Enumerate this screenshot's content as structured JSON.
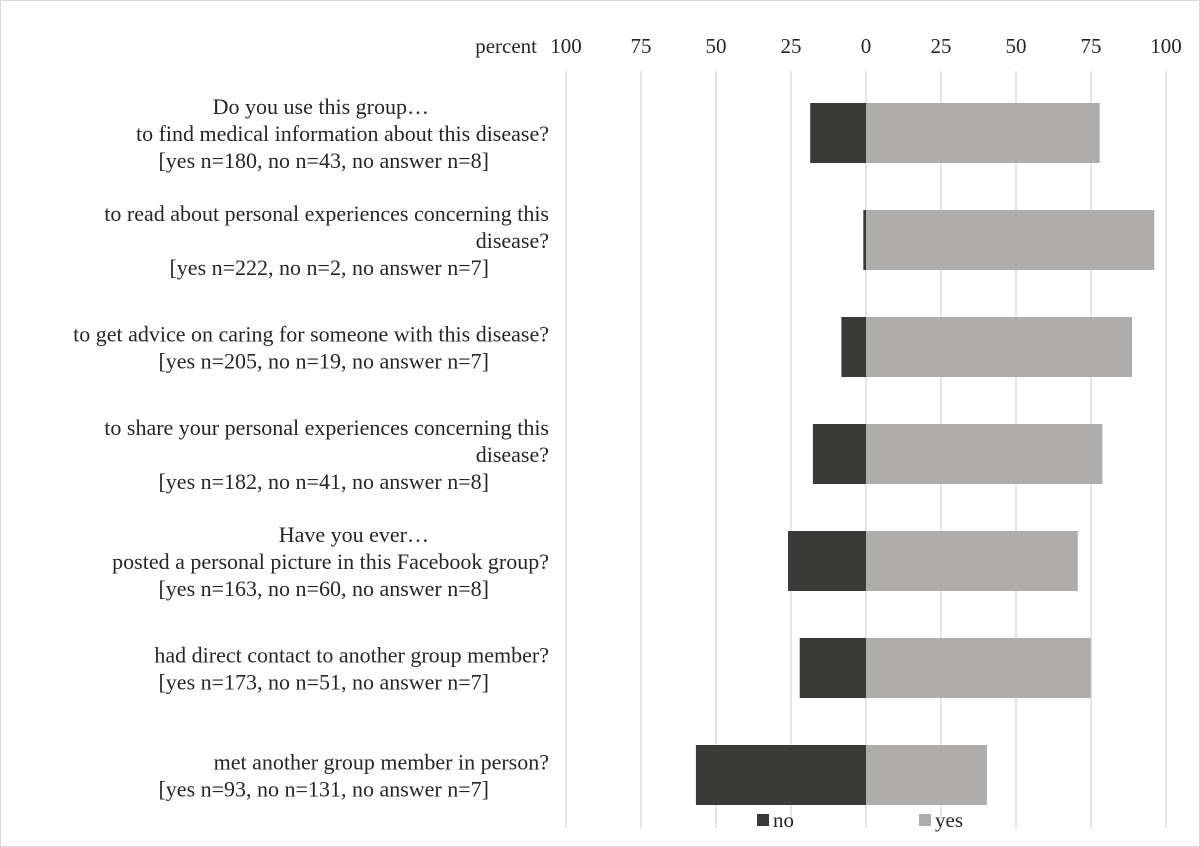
{
  "chart_data": {
    "type": "bar",
    "orientation": "horizontal",
    "stacking": "diverging",
    "xlabel": "percent",
    "xlim": [
      -100,
      100
    ],
    "ticks": [
      -100,
      -75,
      -50,
      -25,
      0,
      25,
      50,
      75,
      100
    ],
    "tick_labels": [
      "100",
      "75",
      "50",
      "25",
      "0",
      "25",
      "50",
      "75",
      "100"
    ],
    "grid": true,
    "legend_position": "bottom",
    "categories": [
      {
        "lines": [
          "Do you use this group…",
          "to find medical information about this disease?",
          "[yes n=180, no n=43, no answer n=8]"
        ]
      },
      {
        "lines": [
          "to read about personal experiences concerning this",
          "disease?",
          "[yes n=222, no n=2, no answer n=7]"
        ]
      },
      {
        "lines": [
          "to get advice on caring for someone with this disease?",
          "[yes n=205, no n=19, no answer n=7]"
        ]
      },
      {
        "lines": [
          "to share your personal experiences concerning this",
          "disease?",
          "[yes n=182, no n=41, no answer n=8]"
        ]
      },
      {
        "lines": [
          "Have you ever…",
          "posted a personal picture in this Facebook group?",
          "[yes n=163, no n=60, no answer n=8]"
        ]
      },
      {
        "lines": [
          "had direct contact to another group member?",
          "[yes n=173, no n=51, no answer n=7]"
        ]
      },
      {
        "lines": [
          "met another group member in person?",
          "[yes n=93, no n=131, no answer n=7]"
        ]
      }
    ],
    "series": [
      {
        "name": "no",
        "color": "#3a3a38",
        "values": [
          18.6,
          0.9,
          8.2,
          17.7,
          26.0,
          22.1,
          56.7
        ]
      },
      {
        "name": "yes",
        "color": "#afadac",
        "values": [
          77.9,
          96.1,
          88.7,
          78.8,
          70.6,
          74.9,
          40.3
        ]
      }
    ]
  }
}
